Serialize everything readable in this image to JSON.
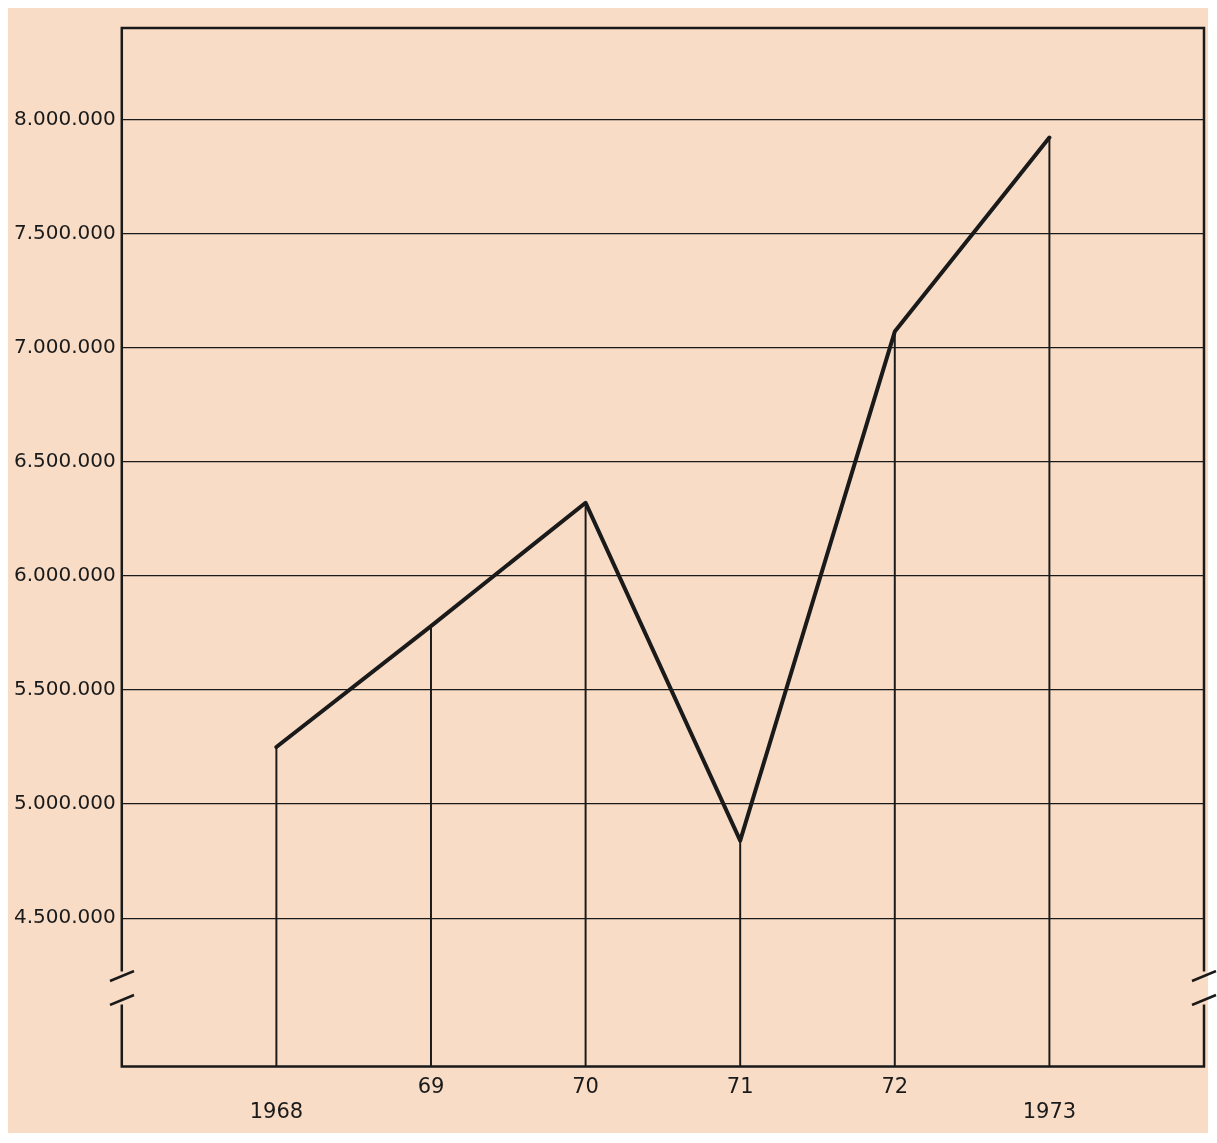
{
  "chart_data": {
    "type": "line",
    "categories": [
      "1968",
      "69",
      "70",
      "71",
      "72",
      "1973"
    ],
    "series": [
      {
        "color": "#1a1a1a",
        "values": [
          5250000,
          5780000,
          6320000,
          4840000,
          7070000,
          7920000
        ]
      },
      {
        "type": "bar",
        "color": "#1a1a1a",
        "values": [
          5250000,
          5780000,
          6320000,
          4840000,
          7070000,
          7920000
        ]
      }
    ],
    "ylim": [
      3850000,
      8400000
    ],
    "yticks": [
      {
        "value": 4500000,
        "label": "4.500.000"
      },
      {
        "value": 5000000,
        "label": "5.000.000"
      },
      {
        "value": 5500000,
        "label": "5.500.000"
      },
      {
        "value": 6000000,
        "label": "6.000.000"
      },
      {
        "value": 6500000,
        "label": "6.500.000"
      },
      {
        "value": 7000000,
        "label": "7.000.000"
      },
      {
        "value": 7500000,
        "label": "7.500.000"
      },
      {
        "value": 8000000,
        "label": "8.000.000"
      }
    ],
    "grid": "y",
    "legend": false,
    "marker": "none",
    "line_style": "solid"
  }
}
